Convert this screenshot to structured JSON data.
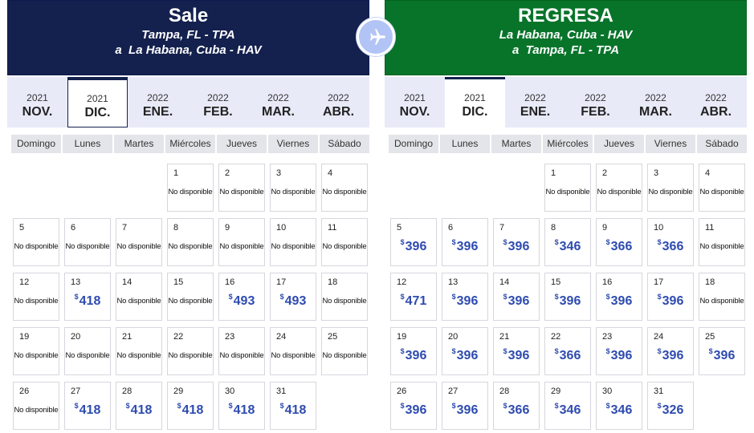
{
  "outbound": {
    "title": "Sale",
    "route_line1": "Tampa, FL - TPA",
    "route_line2": "a  La Habana, Cuba - HAV",
    "active_month": 1,
    "months": [
      {
        "year": "2021",
        "month": "NOV."
      },
      {
        "year": "2021",
        "month": "DIC."
      },
      {
        "year": "2022",
        "month": "ENE."
      },
      {
        "year": "2022",
        "month": "FEB."
      },
      {
        "year": "2022",
        "month": "MAR."
      },
      {
        "year": "2022",
        "month": "ABR."
      }
    ],
    "weekdays": [
      "Domingo",
      "Lunes",
      "Martes",
      "Miércoles",
      "Jueves",
      "Viernes",
      "Sábado"
    ],
    "start_weekday": 3,
    "currency": "$",
    "na_label": "No disponible",
    "days": [
      {
        "day": "1",
        "price": null
      },
      {
        "day": "2",
        "price": null
      },
      {
        "day": "3",
        "price": null
      },
      {
        "day": "4",
        "price": null
      },
      {
        "day": "5",
        "price": null
      },
      {
        "day": "6",
        "price": null
      },
      {
        "day": "7",
        "price": null
      },
      {
        "day": "8",
        "price": null
      },
      {
        "day": "9",
        "price": null
      },
      {
        "day": "10",
        "price": null
      },
      {
        "day": "11",
        "price": null
      },
      {
        "day": "12",
        "price": null
      },
      {
        "day": "13",
        "price": "418"
      },
      {
        "day": "14",
        "price": null
      },
      {
        "day": "15",
        "price": null
      },
      {
        "day": "16",
        "price": "493"
      },
      {
        "day": "17",
        "price": "493"
      },
      {
        "day": "18",
        "price": null
      },
      {
        "day": "19",
        "price": null
      },
      {
        "day": "20",
        "price": null
      },
      {
        "day": "21",
        "price": null
      },
      {
        "day": "22",
        "price": null
      },
      {
        "day": "23",
        "price": null
      },
      {
        "day": "24",
        "price": null
      },
      {
        "day": "25",
        "price": null
      },
      {
        "day": "26",
        "price": null
      },
      {
        "day": "27",
        "price": "418"
      },
      {
        "day": "28",
        "price": "418"
      },
      {
        "day": "29",
        "price": "418"
      },
      {
        "day": "30",
        "price": "418"
      },
      {
        "day": "31",
        "price": "418"
      }
    ]
  },
  "return": {
    "title": "REGRESA",
    "route_line1": "La Habana, Cuba - HAV",
    "route_line2": "a  Tampa, FL - TPA",
    "active_month": 1,
    "months": [
      {
        "year": "2021",
        "month": "NOV."
      },
      {
        "year": "2021",
        "month": "DIC."
      },
      {
        "year": "2022",
        "month": "ENE."
      },
      {
        "year": "2022",
        "month": "FEB."
      },
      {
        "year": "2022",
        "month": "MAR."
      },
      {
        "year": "2022",
        "month": "ABR."
      }
    ],
    "weekdays": [
      "Domingo",
      "Lunes",
      "Martes",
      "Miércoles",
      "Jueves",
      "Viernes",
      "Sábado"
    ],
    "start_weekday": 3,
    "currency": "$",
    "na_label": "No disponible",
    "days": [
      {
        "day": "1",
        "price": null
      },
      {
        "day": "2",
        "price": null
      },
      {
        "day": "3",
        "price": null
      },
      {
        "day": "4",
        "price": null
      },
      {
        "day": "5",
        "price": "396"
      },
      {
        "day": "6",
        "price": "396"
      },
      {
        "day": "7",
        "price": "396"
      },
      {
        "day": "8",
        "price": "346"
      },
      {
        "day": "9",
        "price": "366"
      },
      {
        "day": "10",
        "price": "366"
      },
      {
        "day": "11",
        "price": null
      },
      {
        "day": "12",
        "price": "471"
      },
      {
        "day": "13",
        "price": "396"
      },
      {
        "day": "14",
        "price": "396"
      },
      {
        "day": "15",
        "price": "396"
      },
      {
        "day": "16",
        "price": "396"
      },
      {
        "day": "17",
        "price": "396"
      },
      {
        "day": "18",
        "price": null
      },
      {
        "day": "19",
        "price": "396"
      },
      {
        "day": "20",
        "price": "396"
      },
      {
        "day": "21",
        "price": "396"
      },
      {
        "day": "22",
        "price": "366"
      },
      {
        "day": "23",
        "price": "396"
      },
      {
        "day": "24",
        "price": "396"
      },
      {
        "day": "25",
        "price": "396"
      },
      {
        "day": "26",
        "price": "396"
      },
      {
        "day": "27",
        "price": "396"
      },
      {
        "day": "28",
        "price": "366"
      },
      {
        "day": "29",
        "price": "346"
      },
      {
        "day": "30",
        "price": "346"
      },
      {
        "day": "31",
        "price": "326"
      }
    ]
  },
  "icons": {
    "center": "airplane-icon"
  },
  "colors": {
    "outbound_header": "#14214e",
    "return_header": "#08742a",
    "price": "#2e4bb0",
    "month_bar": "#e8eaf8",
    "plane_badge": "#b2c4f5"
  }
}
